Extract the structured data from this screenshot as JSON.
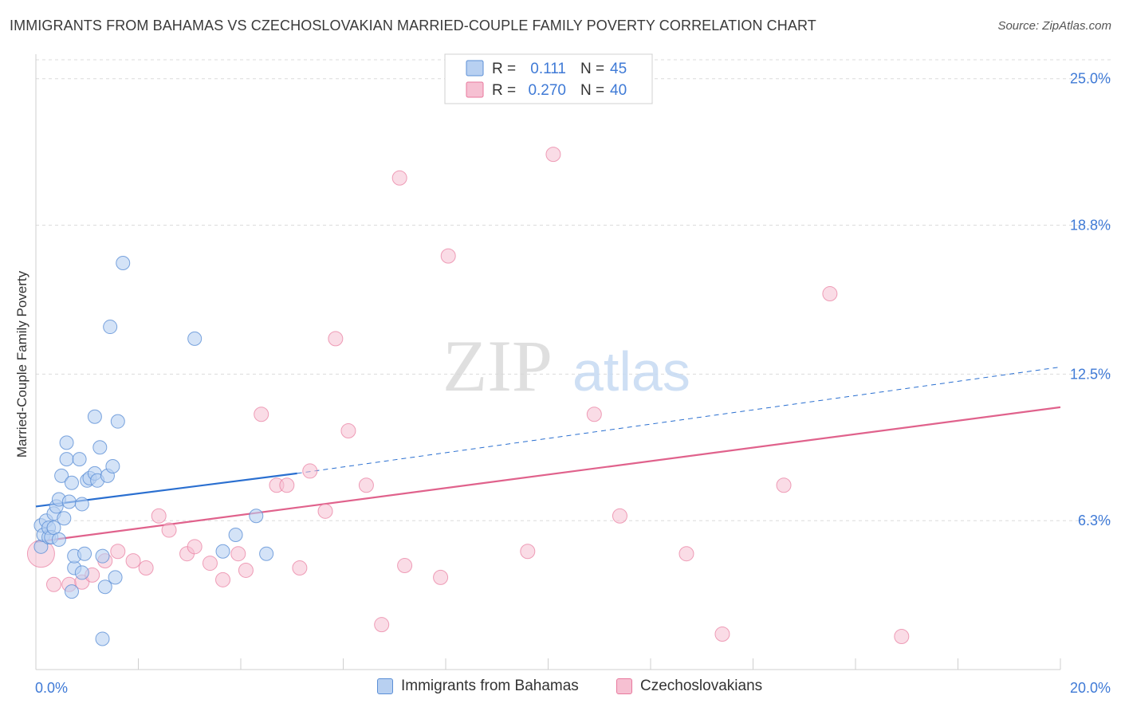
{
  "title": "IMMIGRANTS FROM BAHAMAS VS CZECHOSLOVAKIAN MARRIED-COUPLE FAMILY POVERTY CORRELATION CHART",
  "source": "Source: ZipAtlas.com",
  "watermark": {
    "part1": "ZIP",
    "part2": "atlas"
  },
  "colors": {
    "blue": "#5b8fd6",
    "blue_fill": "#b8d0f1",
    "blue_line": "#2a6fd0",
    "pink": "#e8799d",
    "pink_fill": "#f6c0d2",
    "pink_line": "#e0628c",
    "axis_text": "#3f7ad6"
  },
  "legend": {
    "entries": [
      {
        "r_label": "R =",
        "r_value": "0.111",
        "n_label": "N =",
        "n_value": "45"
      },
      {
        "r_label": "R =",
        "r_value": "0.270",
        "n_label": "N =",
        "n_value": "40"
      }
    ]
  },
  "bottom_legend": [
    "Immigrants from Bahamas",
    "Czechoslovakians"
  ],
  "chart_data": {
    "type": "scatter",
    "title": "IMMIGRANTS FROM BAHAMAS VS CZECHOSLOVAKIAN MARRIED-COUPLE FAMILY POVERTY CORRELATION CHART",
    "xlabel": "",
    "ylabel": "Married-Couple Family Poverty",
    "xlim": [
      0,
      20
    ],
    "ylim": [
      0,
      25.8
    ],
    "x_tick_labels": [
      "0.0%",
      "20.0%"
    ],
    "y_tick_labels": [
      "25.0%",
      "18.8%",
      "12.5%",
      "6.3%"
    ],
    "y_ticks": [
      25.0,
      18.8,
      12.5,
      6.3
    ],
    "series": [
      {
        "name": "Immigrants from Bahamas",
        "color": "#5b8fd6",
        "r": 0.111,
        "n": 45,
        "points": [
          [
            0.1,
            6.1
          ],
          [
            0.1,
            5.2
          ],
          [
            0.15,
            5.7
          ],
          [
            0.2,
            6.3
          ],
          [
            0.25,
            5.6
          ],
          [
            0.25,
            6.0
          ],
          [
            0.3,
            5.6
          ],
          [
            0.35,
            6.6
          ],
          [
            0.35,
            6.0
          ],
          [
            0.4,
            6.9
          ],
          [
            0.45,
            7.2
          ],
          [
            0.45,
            5.5
          ],
          [
            0.5,
            8.2
          ],
          [
            0.55,
            6.4
          ],
          [
            0.6,
            8.9
          ],
          [
            0.6,
            9.6
          ],
          [
            0.65,
            7.1
          ],
          [
            0.7,
            3.3
          ],
          [
            0.7,
            7.9
          ],
          [
            0.75,
            4.3
          ],
          [
            0.75,
            4.8
          ],
          [
            0.85,
            8.9
          ],
          [
            0.9,
            7.0
          ],
          [
            0.9,
            4.1
          ],
          [
            0.95,
            4.9
          ],
          [
            1.0,
            8.0
          ],
          [
            1.05,
            8.1
          ],
          [
            1.15,
            8.3
          ],
          [
            1.15,
            10.7
          ],
          [
            1.2,
            8.0
          ],
          [
            1.25,
            9.4
          ],
          [
            1.3,
            4.8
          ],
          [
            1.3,
            1.3
          ],
          [
            1.35,
            3.5
          ],
          [
            1.4,
            8.2
          ],
          [
            1.45,
            14.5
          ],
          [
            1.5,
            8.6
          ],
          [
            1.55,
            3.9
          ],
          [
            1.6,
            10.5
          ],
          [
            1.7,
            17.2
          ],
          [
            3.1,
            14.0
          ],
          [
            3.65,
            5.0
          ],
          [
            3.9,
            5.7
          ],
          [
            4.3,
            6.5
          ],
          [
            4.5,
            4.9
          ]
        ],
        "trend": {
          "x0": 0,
          "y0": 6.9,
          "x1": 5.1,
          "y1": 8.3,
          "dashed_to_x": 20,
          "dashed_to_y": 12.8
        }
      },
      {
        "name": "Czechoslovakians",
        "color": "#e8799d",
        "r": 0.27,
        "n": 40,
        "points": [
          [
            0.1,
            4.9
          ],
          [
            0.35,
            3.6
          ],
          [
            0.65,
            3.6
          ],
          [
            0.9,
            3.7
          ],
          [
            1.1,
            4.0
          ],
          [
            1.35,
            4.6
          ],
          [
            1.6,
            5.0
          ],
          [
            1.9,
            4.6
          ],
          [
            2.15,
            4.3
          ],
          [
            2.4,
            6.5
          ],
          [
            2.6,
            5.9
          ],
          [
            2.95,
            4.9
          ],
          [
            3.1,
            5.2
          ],
          [
            3.4,
            4.5
          ],
          [
            3.65,
            3.8
          ],
          [
            3.95,
            4.9
          ],
          [
            4.1,
            4.2
          ],
          [
            4.4,
            10.8
          ],
          [
            4.7,
            7.8
          ],
          [
            4.9,
            7.8
          ],
          [
            5.15,
            4.3
          ],
          [
            5.35,
            8.4
          ],
          [
            5.65,
            6.7
          ],
          [
            5.85,
            14.0
          ],
          [
            6.1,
            10.1
          ],
          [
            6.45,
            7.8
          ],
          [
            6.75,
            1.9
          ],
          [
            7.1,
            20.8
          ],
          [
            7.2,
            4.4
          ],
          [
            7.9,
            3.9
          ],
          [
            8.05,
            17.5
          ],
          [
            9.6,
            5.0
          ],
          [
            10.1,
            21.8
          ],
          [
            10.9,
            10.8
          ],
          [
            11.4,
            6.5
          ],
          [
            12.7,
            4.9
          ],
          [
            13.4,
            1.5
          ],
          [
            14.6,
            7.8
          ],
          [
            15.5,
            15.9
          ],
          [
            16.9,
            1.4
          ]
        ],
        "trend": {
          "x0": 0,
          "y0": 5.4,
          "x1": 20,
          "y1": 11.1
        }
      }
    ]
  }
}
